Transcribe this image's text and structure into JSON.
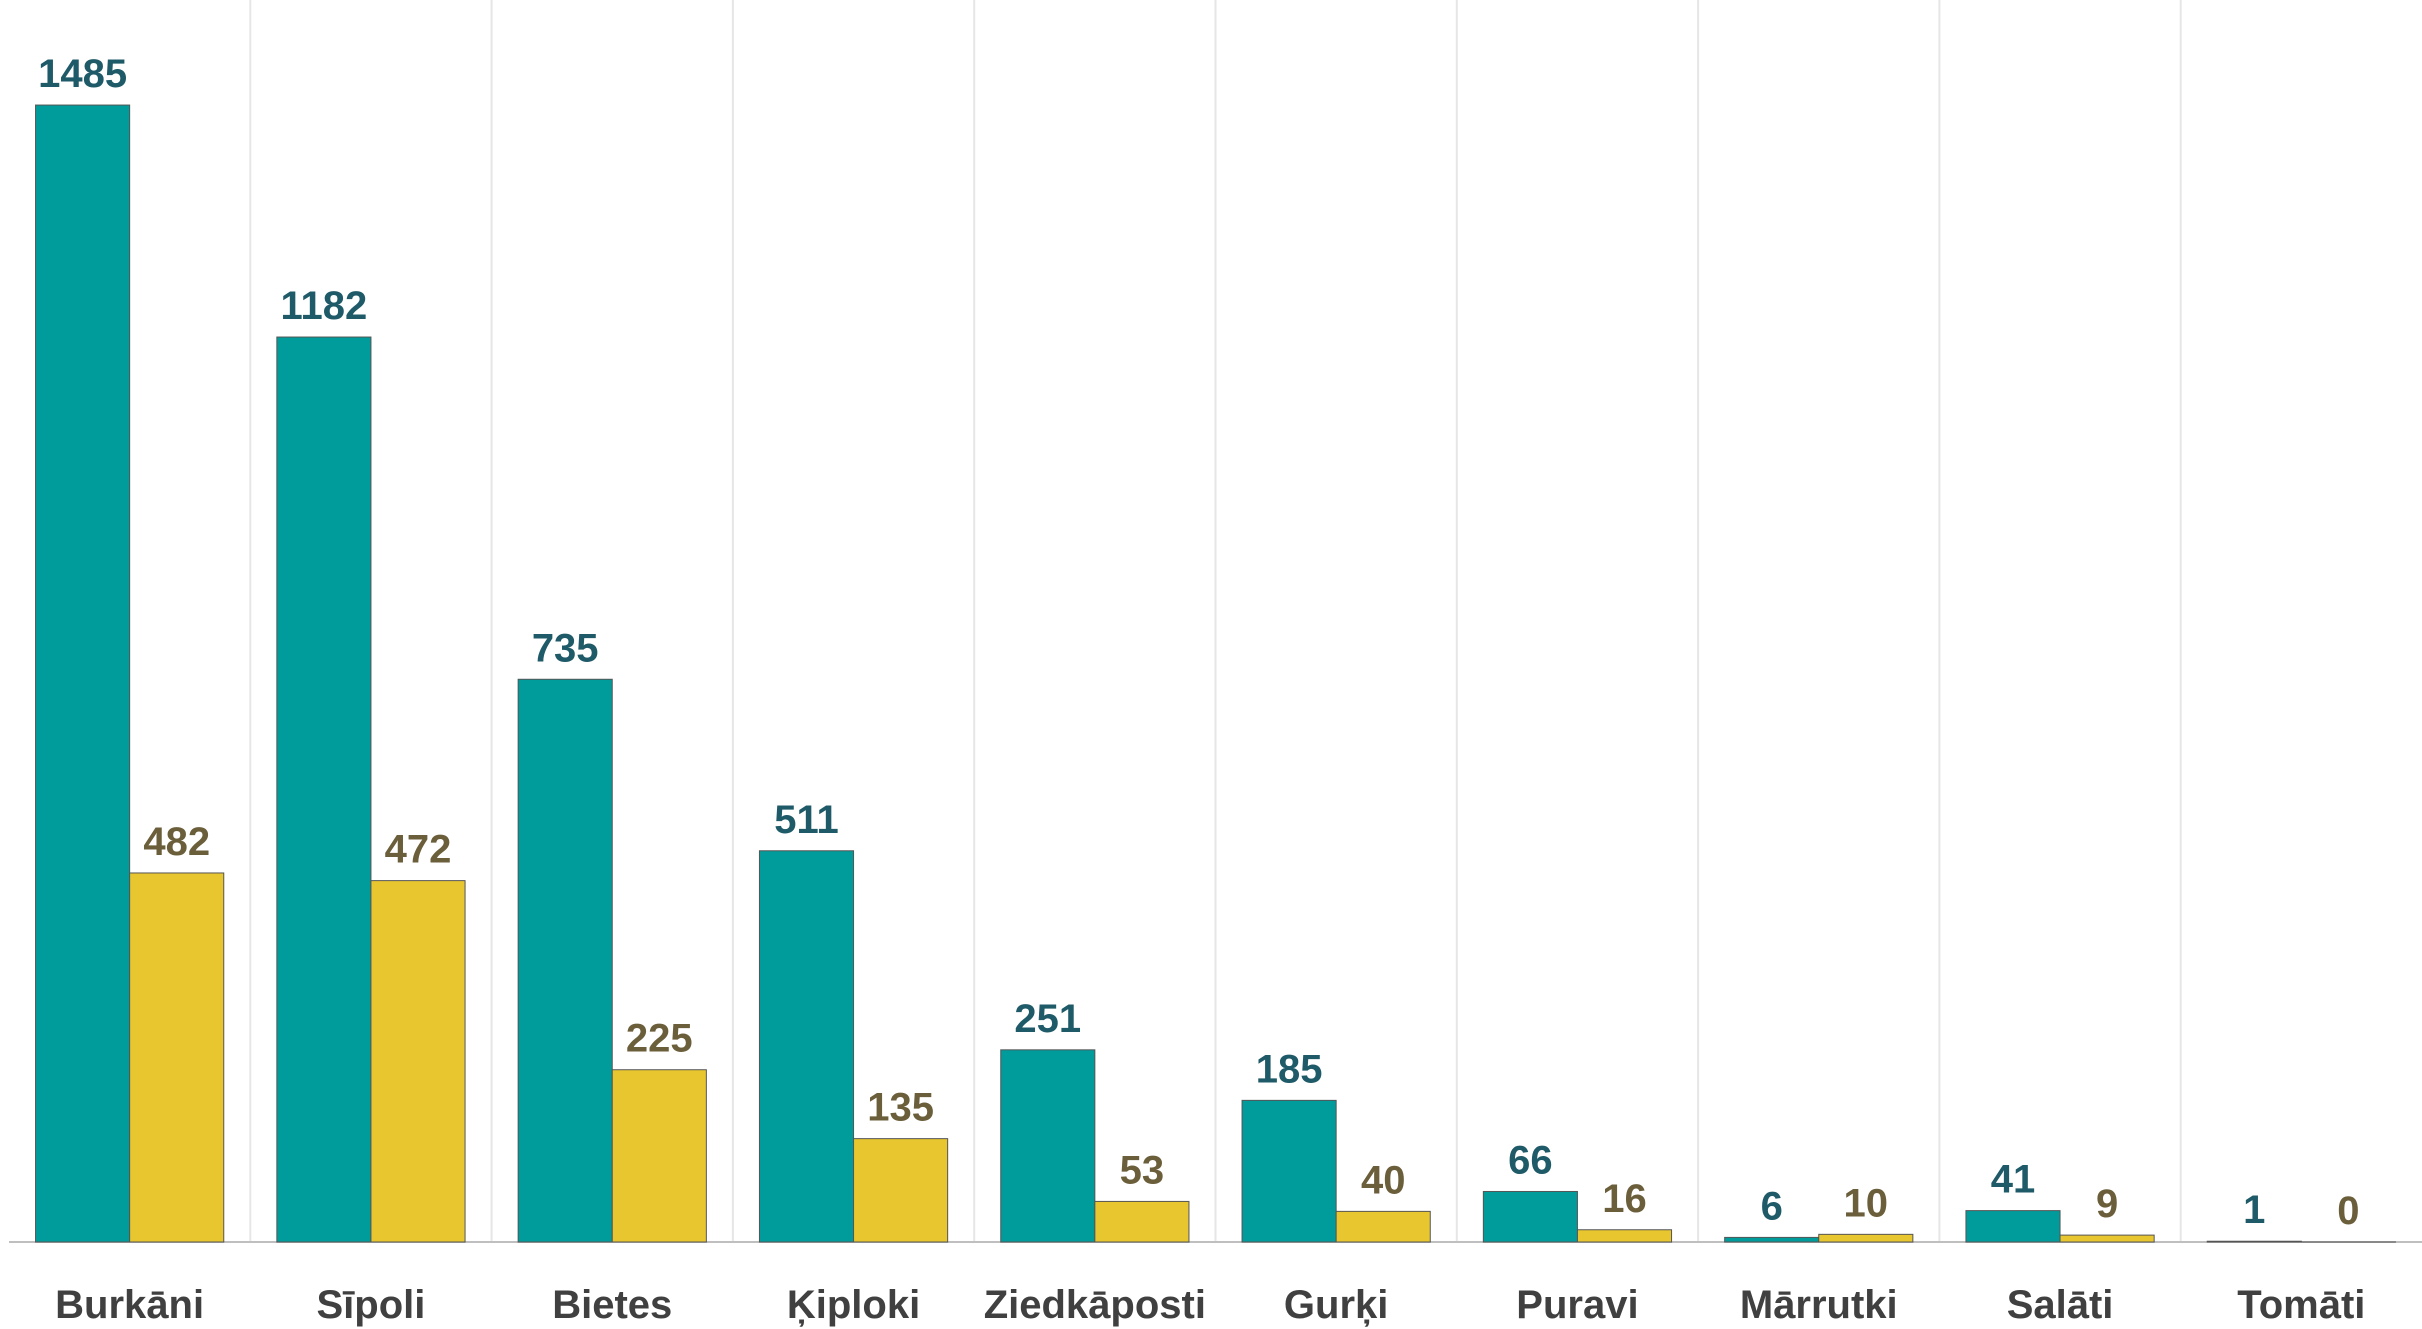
{
  "chart_data": {
    "type": "bar",
    "categories": [
      "Burkāni",
      "Sīpoli",
      "Bietes",
      "Ķiploki",
      "Ziedkāposti",
      "Gurķi",
      "Puravi",
      "Mārrutki",
      "Salāti",
      "Tomāti"
    ],
    "series": [
      {
        "color": "#009b9b",
        "label_color": "#1f5a68",
        "values": [
          1485,
          1182,
          735,
          511,
          251,
          185,
          66,
          6,
          41,
          1
        ]
      },
      {
        "color": "#e8c62f",
        "label_color": "#6b5e3a",
        "values": [
          482,
          472,
          225,
          135,
          53,
          40,
          16,
          10,
          9,
          0
        ]
      }
    ],
    "ylim": [
      0,
      1600
    ]
  }
}
